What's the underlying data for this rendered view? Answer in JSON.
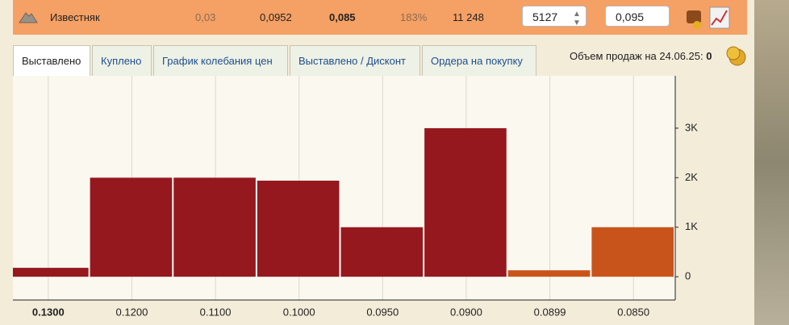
{
  "row": {
    "name": "Известняк",
    "cells": [
      "0,03",
      "0,0952",
      "0,085",
      "183%",
      "11 248"
    ],
    "quantity": "5127",
    "price": "0,095"
  },
  "tabs": [
    "Выставлено",
    "Куплено",
    "График колебания цен",
    "Выставлено / Дисконт",
    "Ордера на покупку"
  ],
  "sales": {
    "label": "Объем продаж на 24.06.25:",
    "value": "0"
  },
  "chart_data": {
    "type": "bar",
    "categories": [
      "0.1300",
      "0.1200",
      "0.1100",
      "0.1000",
      "0.0950",
      "0.0900",
      "0.0899",
      "0.0850"
    ],
    "values": [
      180,
      2000,
      2000,
      1940,
      1000,
      3000,
      130,
      1000
    ],
    "colors": [
      "#95181f",
      "#95181f",
      "#95181f",
      "#95181f",
      "#95181f",
      "#95181f",
      "#c9541b",
      "#c9541b"
    ],
    "ylim": [
      -470,
      3960
    ],
    "yticks": [
      0,
      {
        "value": 1000,
        "label": "1K"
      },
      {
        "value": 2000,
        "label": "2K"
      },
      {
        "value": 3000,
        "label": "3K"
      }
    ]
  }
}
